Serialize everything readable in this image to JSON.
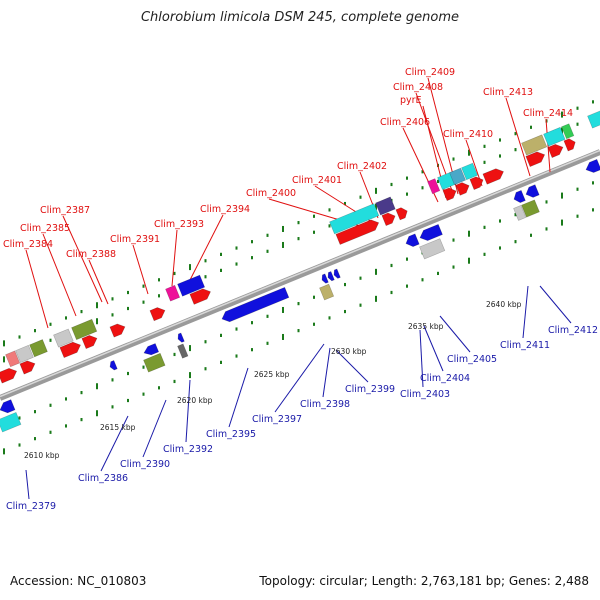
{
  "title": "Chlorobium limicola DSM 245, complete genome",
  "footer": {
    "accession": "Accession: NC_010803",
    "summary": "Topology: circular; Length: 2,763,181 bp; Genes: 2,488"
  },
  "colors": {
    "top_label": "#e01010",
    "bottom_label": "#1a1aa8",
    "backbone": "#9a9a9a",
    "tick": "#1a7a1a",
    "cds": "#ee1111",
    "cds_blue": "#1010dd",
    "cyan": "#22dddd",
    "olive": "#7a9a30",
    "grey": "#c8c8c8",
    "magenta": "#ee1199",
    "khaki": "#bcb06a",
    "purple": "#4a3a8a",
    "salmon": "#f07a7a"
  },
  "scale_labels": [
    "2610 kbp",
    "2615 kbp",
    "2620 kbp",
    "2625 kbp",
    "2630 kbp",
    "2635 kbp",
    "2640 kbp"
  ],
  "top_genes": [
    "Clim_2384",
    "Clim_2385",
    "Clim_2387",
    "Clim_2388",
    "Clim_2391",
    "Clim_2393",
    "Clim_2394",
    "Clim_2400",
    "Clim_2401",
    "Clim_2402",
    "Clim_2406",
    "pyrE",
    "Clim_2408",
    "Clim_2409",
    "Clim_2410",
    "Clim_2413",
    "Clim_2414"
  ],
  "bottom_genes": [
    "Clim_2379",
    "Clim_2386",
    "Clim_2390",
    "Clim_2392",
    "Clim_2395",
    "Clim_2397",
    "Clim_2398",
    "Clim_2399",
    "Clim_2403",
    "Clim_2404",
    "Clim_2405",
    "Clim_2411",
    "Clim_2412"
  ]
}
